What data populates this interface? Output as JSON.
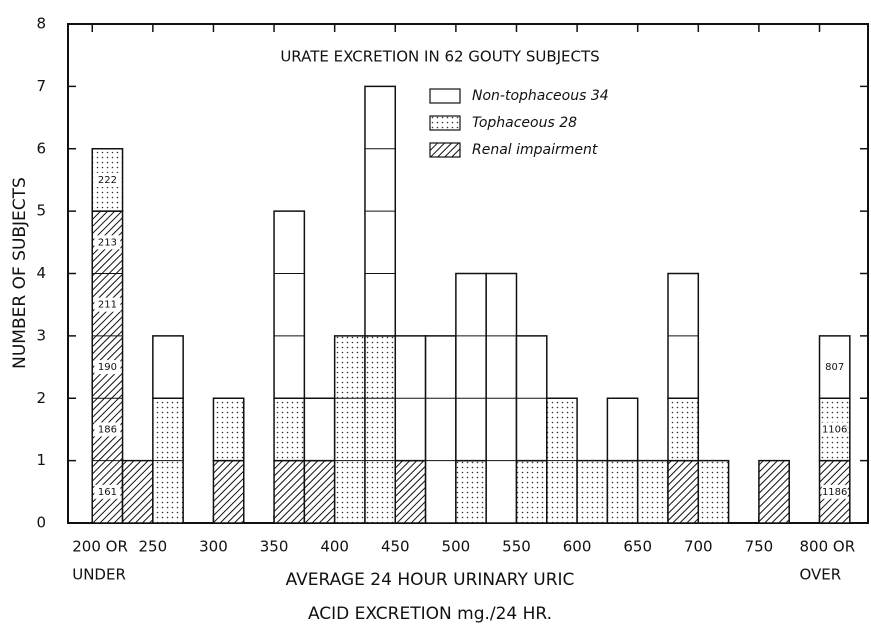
{
  "chart_data": {
    "type": "histogram",
    "title": "URATE EXCRETION IN 62 GOUTY SUBJECTS",
    "xlabel": [
      "AVERAGE 24 HOUR URINARY URIC",
      "ACID EXCRETION mg./24 HR."
    ],
    "ylabel": "NUMBER OF SUBJECTS",
    "bins": [
      200,
      225,
      250,
      275,
      300,
      325,
      350,
      375,
      400,
      425,
      450,
      475,
      500,
      525,
      550,
      575,
      600,
      625,
      650,
      675,
      700,
      725,
      750,
      775,
      800,
      825
    ],
    "series": [
      {
        "name": "Renal impairment",
        "pattern": "hatch",
        "values": [
          5,
          1,
          0,
          0,
          1,
          0,
          1,
          1,
          0,
          0,
          1,
          0,
          0,
          0,
          0,
          0,
          0,
          0,
          0,
          1,
          0,
          0,
          1,
          0,
          1
        ]
      },
      {
        "name": "Tophaceous 28",
        "pattern": "dots",
        "values": [
          1,
          0,
          2,
          0,
          1,
          0,
          1,
          0,
          3,
          3,
          0,
          0,
          1,
          0,
          1,
          2,
          1,
          1,
          1,
          1,
          1,
          0,
          0,
          0,
          1
        ]
      },
      {
        "name": "Non-tophaceous 34",
        "pattern": "none",
        "values": [
          0,
          0,
          1,
          0,
          0,
          0,
          3,
          1,
          0,
          4,
          2,
          3,
          3,
          4,
          2,
          0,
          0,
          1,
          0,
          2,
          0,
          0,
          0,
          0,
          1
        ]
      }
    ],
    "cell_labels": [
      {
        "x": 200,
        "level": 0,
        "text": "161"
      },
      {
        "x": 200,
        "level": 1,
        "text": "186"
      },
      {
        "x": 200,
        "level": 2,
        "text": "190"
      },
      {
        "x": 200,
        "level": 3,
        "text": "211"
      },
      {
        "x": 200,
        "level": 4,
        "text": "213"
      },
      {
        "x": 200,
        "level": 5,
        "text": "222"
      },
      {
        "x": 800,
        "level": 0,
        "text": "1186"
      },
      {
        "x": 800,
        "level": 1,
        "text": "1106"
      },
      {
        "x": 800,
        "level": 2,
        "text": "807"
      }
    ],
    "xlim": [
      180,
      840
    ],
    "ylim": [
      0,
      8
    ],
    "xticks": [
      {
        "value": 200,
        "label": "200 OR"
      },
      250,
      300,
      350,
      400,
      450,
      500,
      550,
      600,
      650,
      700,
      750,
      {
        "value": 800,
        "label": "800 OR"
      }
    ],
    "yticks": [
      0,
      1,
      2,
      3,
      4,
      5,
      6,
      7,
      8
    ],
    "annotations": [
      {
        "x": 200,
        "text": "UNDER"
      },
      {
        "x": 800,
        "text": "OVER"
      }
    ]
  }
}
